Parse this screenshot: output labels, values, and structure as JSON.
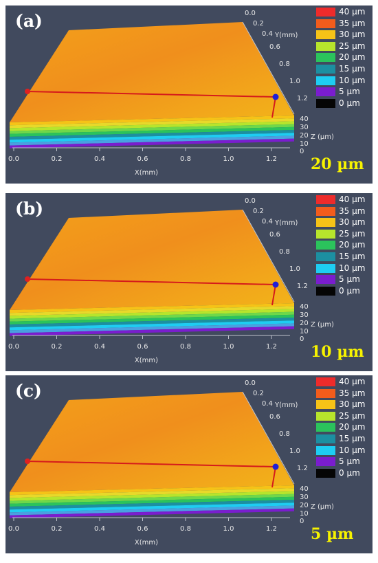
{
  "legend": [
    {
      "label": "40 µm",
      "color": "#ee2b2b"
    },
    {
      "label": "35 µm",
      "color": "#f25c1c"
    },
    {
      "label": "30 µm",
      "color": "#f6c317"
    },
    {
      "label": "25 µm",
      "color": "#b7e52c"
    },
    {
      "label": "20 µm",
      "color": "#2bc35c"
    },
    {
      "label": "15 µm",
      "color": "#1c8fa1"
    },
    {
      "label": "10 µm",
      "color": "#1ecdf2"
    },
    {
      "label": "5 µm",
      "color": "#7a1dce"
    },
    {
      "label": "0 µm",
      "color": "#050505"
    }
  ],
  "axes": {
    "x_ticks": [
      "0.0",
      "0.2",
      "0.4",
      "0.6",
      "0.8",
      "1.0",
      "1.2"
    ],
    "x_label": "X(mm)",
    "y_ticks": [
      "0.0",
      "0.2",
      "0.4",
      "0.6",
      "0.8",
      "1.0",
      "1.2"
    ],
    "y_label": "Y(mm)",
    "z_ticks": [
      "40",
      "30",
      "20",
      "10",
      "0"
    ],
    "z_label": "Z (µm)"
  },
  "panels": [
    {
      "label": "(a)",
      "thickness": "20 µm"
    },
    {
      "label": "(b)",
      "thickness": "10 µm"
    },
    {
      "label": "(c)",
      "thickness": "5 µm"
    }
  ]
}
